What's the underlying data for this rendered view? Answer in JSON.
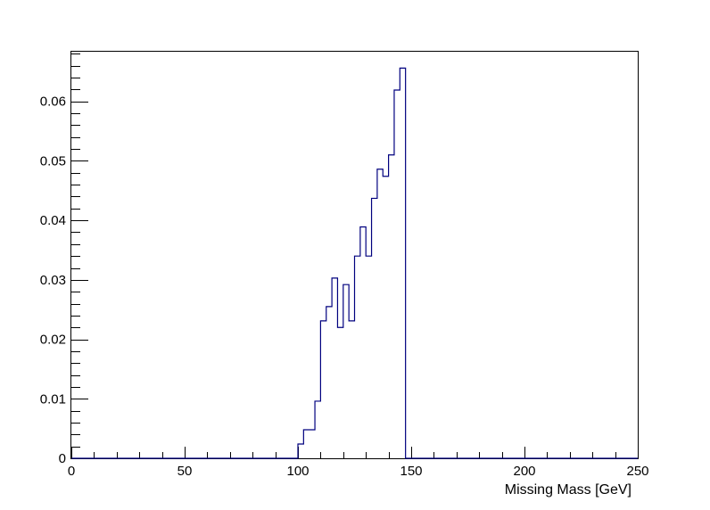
{
  "chart_data": {
    "type": "histogram",
    "title": "",
    "xlabel": "Missing Mass [GeV]",
    "ylabel": "",
    "xlim": [
      0,
      250
    ],
    "ylim": [
      0,
      0.0685
    ],
    "grid": false,
    "legend": "none",
    "line_color": "#00007f",
    "x_ticks": [
      0,
      50,
      100,
      150,
      200,
      250
    ],
    "x_tick_labels": [
      "0",
      "50",
      "100",
      "150",
      "200",
      "250"
    ],
    "y_ticks": [
      0,
      0.01,
      0.02,
      0.03,
      0.04,
      0.05,
      0.06
    ],
    "y_tick_labels": [
      "0",
      "0.01",
      "0.02",
      "0.03",
      "0.04",
      "0.05",
      "0.06"
    ],
    "bin_width": 2.5,
    "bins": [
      {
        "x0": 100.0,
        "y": 0.0024
      },
      {
        "x0": 102.5,
        "y": 0.0048
      },
      {
        "x0": 105.0,
        "y": 0.0048
      },
      {
        "x0": 107.5,
        "y": 0.0096
      },
      {
        "x0": 110.0,
        "y": 0.0231
      },
      {
        "x0": 112.5,
        "y": 0.0255
      },
      {
        "x0": 115.0,
        "y": 0.0303
      },
      {
        "x0": 117.5,
        "y": 0.022
      },
      {
        "x0": 120.0,
        "y": 0.0292
      },
      {
        "x0": 122.5,
        "y": 0.0231
      },
      {
        "x0": 125.0,
        "y": 0.034
      },
      {
        "x0": 127.5,
        "y": 0.0389
      },
      {
        "x0": 130.0,
        "y": 0.034
      },
      {
        "x0": 132.5,
        "y": 0.0437
      },
      {
        "x0": 135.0,
        "y": 0.0486
      },
      {
        "x0": 137.5,
        "y": 0.0474
      },
      {
        "x0": 140.0,
        "y": 0.051
      },
      {
        "x0": 142.5,
        "y": 0.0619
      },
      {
        "x0": 145.0,
        "y": 0.0656
      }
    ]
  }
}
